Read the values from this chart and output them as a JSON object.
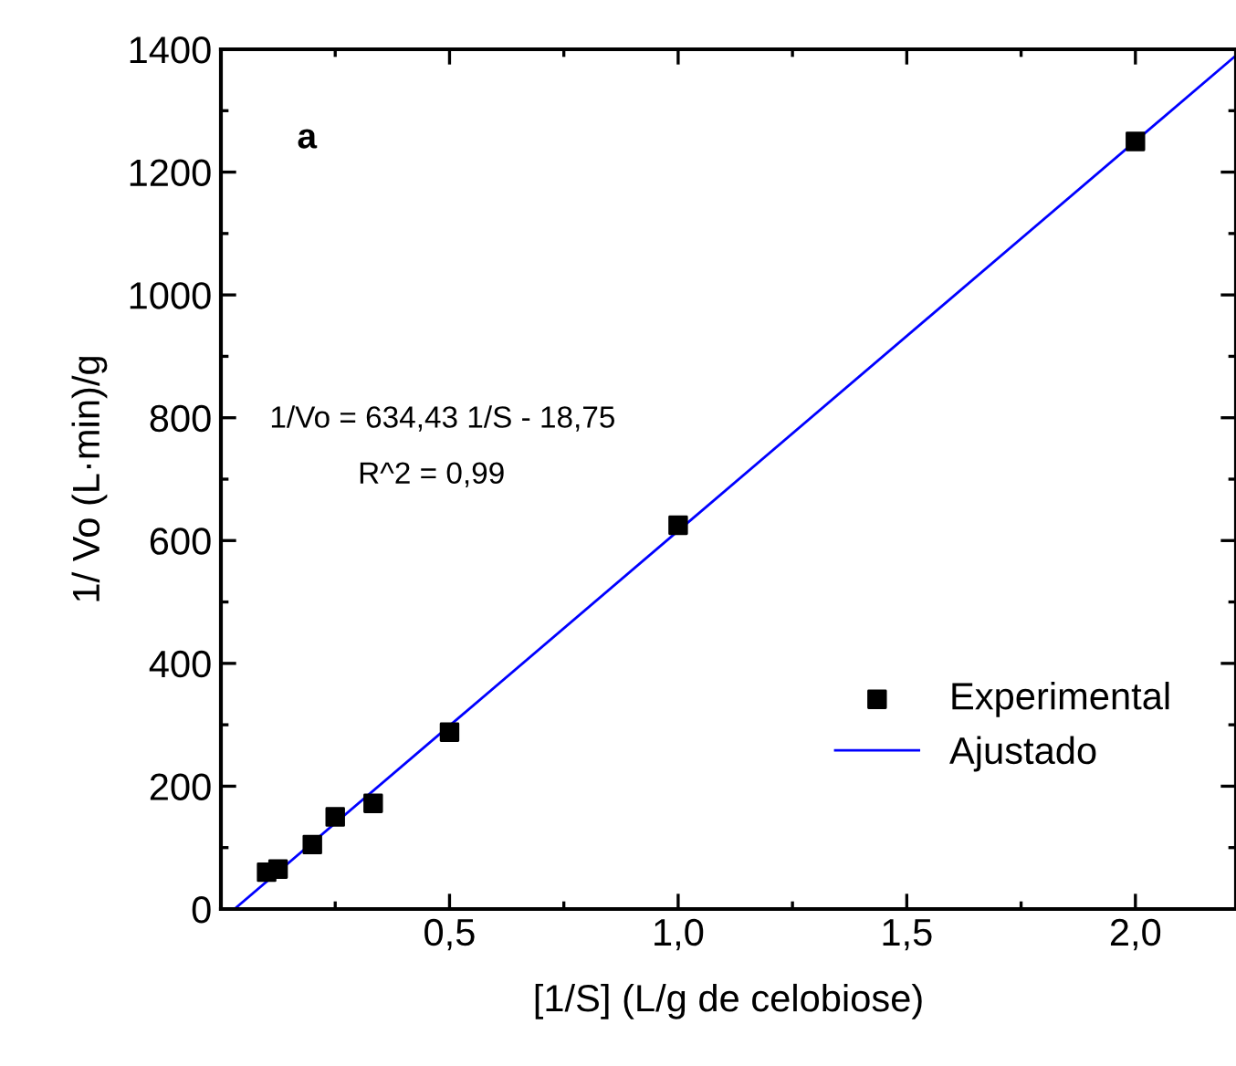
{
  "chart_data": {
    "type": "scatter",
    "xlabel": "[1/S] (L/g de celobiose)",
    "ylabel": "1/ Vo (L·min)/g",
    "xlim": [
      0,
      2.22
    ],
    "xticks": [
      {
        "value": 0.5,
        "label": "0,5"
      },
      {
        "value": 1.0,
        "label": "1,0"
      },
      {
        "value": 1.5,
        "label": "1,5"
      },
      {
        "value": 2.0,
        "label": "2,0"
      }
    ],
    "ylim": [
      0,
      1400
    ],
    "yticks": [
      0,
      200,
      400,
      600,
      800,
      1000,
      1200,
      1400
    ],
    "series": [
      {
        "name": "Experimental",
        "color": "#000000",
        "marker": "square",
        "x": [
          0.1,
          0.125,
          0.2,
          0.25,
          0.333,
          0.5,
          1.0,
          2.0
        ],
        "values": [
          60,
          65,
          105,
          150,
          172,
          288,
          625,
          1250
        ]
      },
      {
        "name": "Ajustado",
        "type": "line",
        "color": "#0000ff",
        "marker": "none",
        "line_style": "solid",
        "x": [
          0.0296,
          2.22
        ],
        "values": [
          0,
          1390
        ]
      }
    ],
    "annotations": [
      "a",
      "1/Vo = 634,43 1/S - 18,75",
      "R^2 = 0,99"
    ],
    "legend": "bottom right",
    "grid": false
  }
}
